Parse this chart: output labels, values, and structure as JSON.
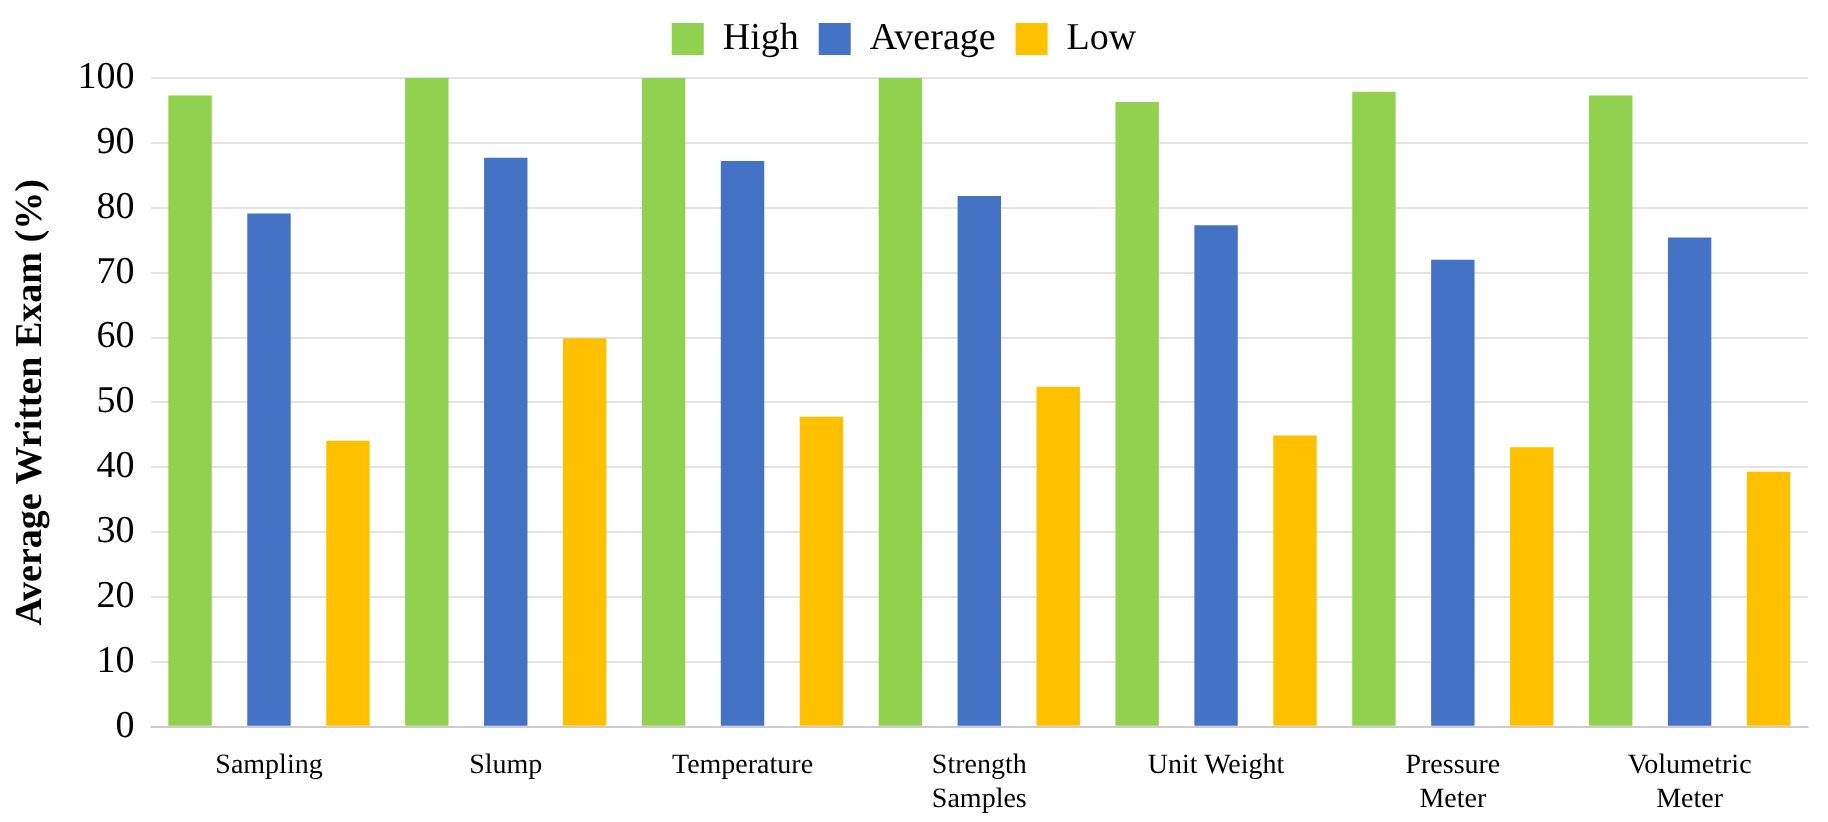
{
  "chart_data": {
    "type": "bar",
    "ylabel": "Average Written Exam (%)",
    "categories": [
      "Sampling",
      "Slump",
      "Temperature",
      "Strength Samples",
      "Unit Weight",
      "Pressure Meter",
      "Volumetric Meter"
    ],
    "series": [
      {
        "name": "High",
        "color": "#92d050",
        "values": [
          97.3,
          100,
          100,
          100,
          96.3,
          97.9,
          97.3
        ]
      },
      {
        "name": "Average",
        "color": "#4472c4",
        "values": [
          79.1,
          87.7,
          87.2,
          81.8,
          77.3,
          72.0,
          75.4
        ]
      },
      {
        "name": "Low",
        "color": "#ffc000",
        "values": [
          44.1,
          59.9,
          47.8,
          52.4,
          44.9,
          43.1,
          39.3
        ]
      }
    ],
    "ylim": [
      0,
      100
    ],
    "yticks": [
      0,
      10,
      20,
      30,
      40,
      50,
      60,
      70,
      80,
      90,
      100
    ],
    "grid": "y",
    "legend": "top"
  }
}
